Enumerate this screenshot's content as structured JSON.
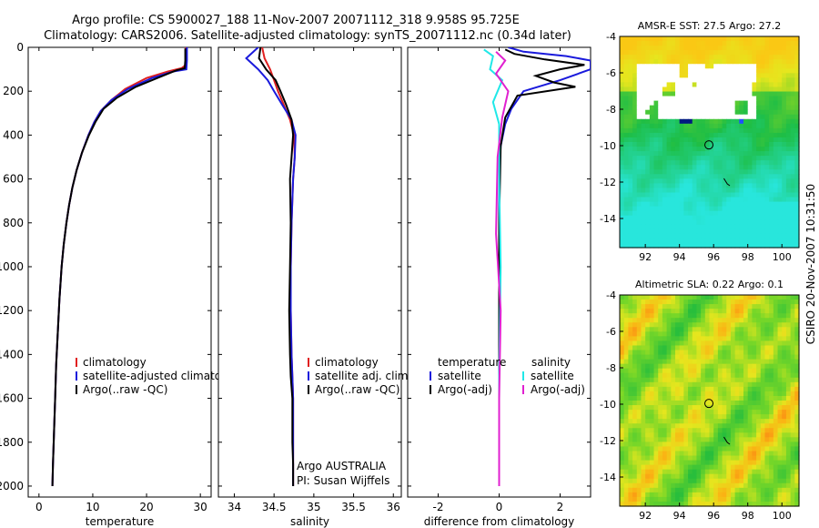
{
  "figure": {
    "title_line1": "Argo profile: CS 5900027_188 11-Nov-2007 20071112_318 9.958S 95.725E",
    "title_line2": "Climatology: CARS2006. Satellite-adjusted climatology: synTS_20071112.nc (0.34d later)",
    "side_stamp": "CSIRO 20-Nov-2007 10:31:50",
    "float_info_1": "Argo AUSTRALIA",
    "float_info_2": "PI: Susan Wijffels"
  },
  "colors": {
    "climatology": "#e02020",
    "satellite": "#1a1adc",
    "argo": "#000000",
    "sal_satellite": "#20e8e8",
    "sal_argo": "#e020d0"
  },
  "chart_data": [
    {
      "type": "line",
      "id": "temperature",
      "xlabel": "temperature",
      "ylabel": "",
      "xlim": [
        -2,
        32
      ],
      "ylim": [
        2050,
        0
      ],
      "xticks": [
        0,
        10,
        20,
        30
      ],
      "yticks": [
        0,
        200,
        400,
        600,
        800,
        1000,
        1200,
        1400,
        1600,
        1800,
        2000
      ],
      "legend": [
        "climatology",
        "satellite-adjusted climatology",
        "Argo(..raw -QC)"
      ],
      "series": [
        {
          "name": "climatology",
          "color": "red",
          "x": [
            27.3,
            27.3,
            26.5,
            24,
            20,
            16,
            13.5,
            11.5,
            10.3,
            9.2,
            8,
            7,
            6.2,
            5.6,
            5.1,
            4.6,
            4.2,
            3.8,
            3.5,
            3.2,
            3,
            2.8,
            2.6,
            2.5
          ],
          "y": [
            0,
            80,
            95,
            110,
            140,
            190,
            240,
            290,
            340,
            400,
            480,
            560,
            640,
            720,
            800,
            900,
            1000,
            1150,
            1300,
            1450,
            1600,
            1750,
            1900,
            2000
          ]
        },
        {
          "name": "satellite",
          "color": "blue",
          "x": [
            27.5,
            27.5,
            27.4,
            25,
            21,
            16.5,
            13.5,
            11.5,
            10.3,
            9.2,
            8,
            7,
            6.2,
            5.6,
            5.1,
            4.6,
            4.2,
            3.8,
            3.5,
            3.2,
            3,
            2.8,
            2.6,
            2.5
          ],
          "y": [
            0,
            60,
            100,
            110,
            140,
            190,
            240,
            290,
            340,
            400,
            480,
            560,
            640,
            720,
            800,
            900,
            1000,
            1150,
            1300,
            1450,
            1600,
            1750,
            1900,
            2000
          ]
        },
        {
          "name": "Argo",
          "color": "black",
          "x": [
            27.2,
            27.2,
            27.1,
            25.5,
            22,
            18,
            14.5,
            12,
            10.5,
            9.3,
            8,
            7,
            6.2,
            5.6,
            5.1,
            4.6,
            4.2,
            3.8,
            3.5,
            3.2,
            3,
            2.8,
            2.6,
            2.5
          ],
          "y": [
            5,
            60,
            95,
            105,
            140,
            180,
            230,
            280,
            340,
            400,
            480,
            560,
            640,
            720,
            800,
            900,
            1000,
            1150,
            1300,
            1450,
            1600,
            1750,
            1900,
            2000
          ]
        }
      ]
    },
    {
      "type": "line",
      "id": "salinity",
      "xlabel": "salinity",
      "xlim": [
        33.8,
        36.1
      ],
      "ylim": [
        2050,
        0
      ],
      "xticks": [
        34,
        34.5,
        35,
        35.5,
        36
      ],
      "legend": [
        "climatology",
        "satellite adj. clim.",
        "Argo(..raw -QC)"
      ],
      "series": [
        {
          "name": "climatology",
          "color": "red",
          "x": [
            34.35,
            34.38,
            34.45,
            34.5,
            34.55,
            34.62,
            34.7,
            34.75,
            34.76,
            34.74,
            34.72,
            34.71,
            34.71,
            34.72,
            34.73,
            34.74,
            34.74,
            34.74,
            34.74
          ],
          "y": [
            0,
            50,
            100,
            150,
            200,
            260,
            330,
            400,
            500,
            600,
            800,
            1000,
            1200,
            1400,
            1500,
            1600,
            1800,
            1900,
            2000
          ]
        },
        {
          "name": "satellite",
          "color": "blue",
          "x": [
            34.3,
            34.15,
            34.3,
            34.42,
            34.5,
            34.6,
            34.72,
            34.77,
            34.76,
            34.74,
            34.72,
            34.71,
            34.71,
            34.72,
            34.73,
            34.74,
            34.74,
            34.74,
            34.74
          ],
          "y": [
            0,
            50,
            100,
            150,
            200,
            260,
            330,
            400,
            500,
            600,
            800,
            1000,
            1200,
            1400,
            1500,
            1600,
            1800,
            1900,
            2000
          ]
        },
        {
          "name": "Argo",
          "color": "black",
          "x": [
            34.33,
            34.31,
            34.4,
            34.52,
            34.58,
            34.65,
            34.72,
            34.74,
            34.72,
            34.7,
            34.71,
            34.7,
            34.69,
            34.7,
            34.71,
            34.73,
            34.73,
            34.74,
            34.74
          ],
          "y": [
            0,
            50,
            100,
            150,
            200,
            260,
            330,
            400,
            500,
            600,
            800,
            1000,
            1200,
            1400,
            1500,
            1600,
            1800,
            1900,
            2000
          ]
        }
      ]
    },
    {
      "type": "line",
      "id": "difference",
      "xlabel": "difference from climatology",
      "xlim": [
        -3,
        3
      ],
      "ylim": [
        2050,
        0
      ],
      "xticks": [
        -2,
        0,
        2
      ],
      "legend_temperature": [
        "temperature",
        "satellite",
        "Argo(-adj)"
      ],
      "legend_salinity": [
        "salinity",
        "satellite",
        "Argo(-adj)"
      ],
      "series": [
        {
          "name": "temperature satellite",
          "color": "blue",
          "x": [
            0.3,
            0.8,
            2.2,
            3.0,
            3.0,
            2.0,
            0.8,
            0.4,
            0.2,
            0.05,
            0,
            0,
            0,
            0
          ],
          "y": [
            0,
            20,
            40,
            60,
            100,
            150,
            200,
            280,
            350,
            450,
            600,
            1000,
            1500,
            2000
          ]
        },
        {
          "name": "temperature Argo",
          "color": "black",
          "x": [
            0.2,
            0.5,
            1.5,
            2.8,
            2.0,
            1.2,
            1.8,
            2.5,
            0.6,
            0.2,
            0.05,
            0,
            0,
            0
          ],
          "y": [
            10,
            30,
            55,
            80,
            100,
            130,
            160,
            180,
            220,
            320,
            450,
            800,
            1500,
            2000
          ]
        },
        {
          "name": "salinity satellite",
          "color": "cyan",
          "x": [
            -0.5,
            -0.2,
            -0.3,
            0.1,
            -0.2,
            0,
            0,
            0.05,
            0,
            0,
            0
          ],
          "y": [
            10,
            40,
            100,
            150,
            250,
            350,
            600,
            1000,
            1500,
            1800,
            2000
          ]
        },
        {
          "name": "salinity Argo",
          "color": "magenta",
          "x": [
            -0.1,
            0.2,
            -0.1,
            0.3,
            0.1,
            -0.05,
            -0.1,
            0.05,
            0,
            0
          ],
          "y": [
            20,
            60,
            120,
            200,
            320,
            500,
            850,
            1200,
            1600,
            2000
          ]
        }
      ]
    },
    {
      "type": "heatmap",
      "id": "sst-map",
      "title": "AMSR-E SST: 27.5 Argo: 27.2",
      "xlim": [
        90.5,
        101
      ],
      "ylim": [
        -15.6,
        -4
      ],
      "xticks": [
        92,
        94,
        96,
        98,
        100
      ],
      "yticks": [
        -4,
        -6,
        -8,
        -10,
        -12,
        -14
      ],
      "marker_lon": 95.725,
      "marker_lat": -9.958
    },
    {
      "type": "heatmap",
      "id": "sla-map",
      "title": "Altimetric SLA: 0.22 Argo: 0.1",
      "xlim": [
        90.5,
        101
      ],
      "ylim": [
        -15.6,
        -4
      ],
      "xticks": [
        92,
        94,
        96,
        98,
        100
      ],
      "yticks": [
        -4,
        -6,
        -8,
        -10,
        -12,
        -14
      ],
      "marker_lon": 95.725,
      "marker_lat": -9.958
    }
  ]
}
